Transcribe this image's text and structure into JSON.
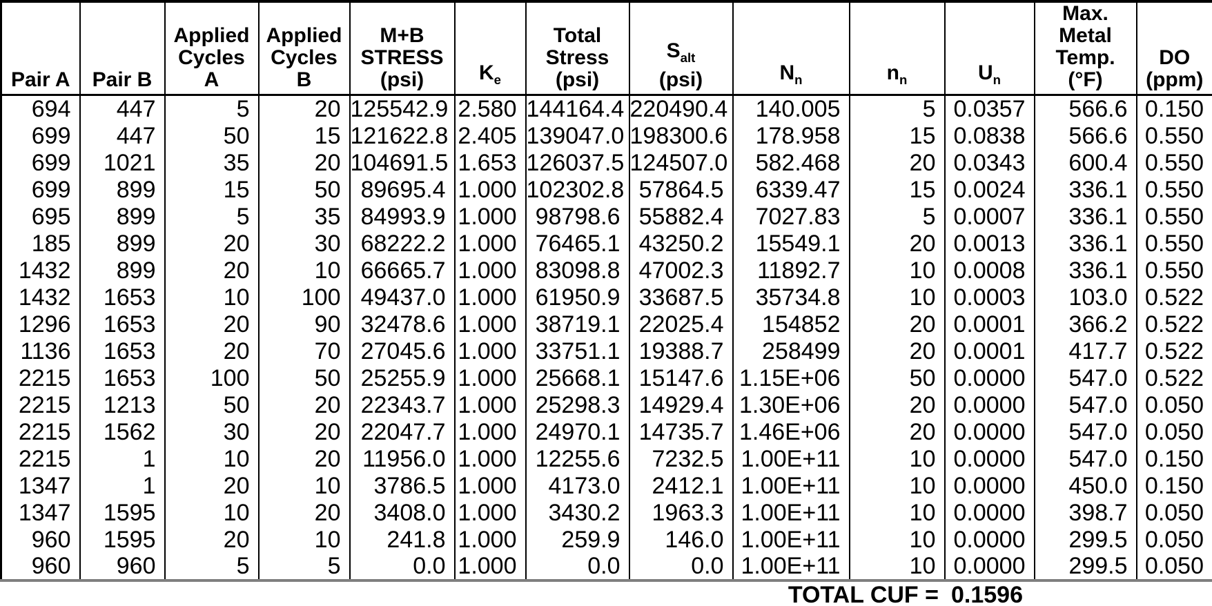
{
  "table": {
    "headers": [
      {
        "id": "pair_a",
        "lines": [
          {
            "t": "Pair A"
          }
        ]
      },
      {
        "id": "pair_b",
        "lines": [
          {
            "t": "Pair B"
          }
        ]
      },
      {
        "id": "applied_cycles_a",
        "lines": [
          {
            "t": "Applied"
          },
          {
            "t": "Cycles"
          },
          {
            "t": "A"
          }
        ]
      },
      {
        "id": "applied_cycles_b",
        "lines": [
          {
            "t": "Applied"
          },
          {
            "t": "Cycles"
          },
          {
            "t": "B"
          }
        ]
      },
      {
        "id": "mb_stress_psi",
        "lines": [
          {
            "t": "M+B"
          },
          {
            "t": "STRESS"
          },
          {
            "t": "(psi)"
          }
        ]
      },
      {
        "id": "ke",
        "lines": [
          {
            "t": "K",
            "sub": "e"
          }
        ]
      },
      {
        "id": "total_stress_psi",
        "lines": [
          {
            "t": "Total"
          },
          {
            "t": "Stress"
          },
          {
            "t": "(psi)"
          }
        ]
      },
      {
        "id": "salt_psi",
        "lines": [
          {
            "t": "S",
            "sub": "alt"
          },
          {
            "t": "(psi)"
          }
        ]
      },
      {
        "id": "big_n_n",
        "lines": [
          {
            "t": "N",
            "sub": "n"
          }
        ]
      },
      {
        "id": "small_n_n",
        "lines": [
          {
            "t": "n",
            "sub": "n"
          }
        ]
      },
      {
        "id": "u_n",
        "lines": [
          {
            "t": "U",
            "sub": "n"
          }
        ]
      },
      {
        "id": "max_metal_temp_f",
        "lines": [
          {
            "t": "Max."
          },
          {
            "t": "Metal"
          },
          {
            "t": "Temp."
          },
          {
            "t": "(°F)"
          }
        ]
      },
      {
        "id": "do_ppm",
        "lines": [
          {
            "t": "DO"
          },
          {
            "t": "(ppm)"
          }
        ]
      }
    ],
    "rows": [
      [
        "694",
        "447",
        "5",
        "20",
        "125542.9",
        "2.580",
        "144164.4",
        "220490.4",
        "140.005",
        "5",
        "0.0357",
        "566.6",
        "0.150"
      ],
      [
        "699",
        "447",
        "50",
        "15",
        "121622.8",
        "2.405",
        "139047.0",
        "198300.6",
        "178.958",
        "15",
        "0.0838",
        "566.6",
        "0.550"
      ],
      [
        "699",
        "1021",
        "35",
        "20",
        "104691.5",
        "1.653",
        "126037.5",
        "124507.0",
        "582.468",
        "20",
        "0.0343",
        "600.4",
        "0.550"
      ],
      [
        "699",
        "899",
        "15",
        "50",
        "89695.4",
        "1.000",
        "102302.8",
        "57864.5",
        "6339.47",
        "15",
        "0.0024",
        "336.1",
        "0.550"
      ],
      [
        "695",
        "899",
        "5",
        "35",
        "84993.9",
        "1.000",
        "98798.6",
        "55882.4",
        "7027.83",
        "5",
        "0.0007",
        "336.1",
        "0.550"
      ],
      [
        "185",
        "899",
        "20",
        "30",
        "68222.2",
        "1.000",
        "76465.1",
        "43250.2",
        "15549.1",
        "20",
        "0.0013",
        "336.1",
        "0.550"
      ],
      [
        "1432",
        "899",
        "20",
        "10",
        "66665.7",
        "1.000",
        "83098.8",
        "47002.3",
        "11892.7",
        "10",
        "0.0008",
        "336.1",
        "0.550"
      ],
      [
        "1432",
        "1653",
        "10",
        "100",
        "49437.0",
        "1.000",
        "61950.9",
        "33687.5",
        "35734.8",
        "10",
        "0.0003",
        "103.0",
        "0.522"
      ],
      [
        "1296",
        "1653",
        "20",
        "90",
        "32478.6",
        "1.000",
        "38719.1",
        "22025.4",
        "154852",
        "20",
        "0.0001",
        "366.2",
        "0.522"
      ],
      [
        "1136",
        "1653",
        "20",
        "70",
        "27045.6",
        "1.000",
        "33751.1",
        "19388.7",
        "258499",
        "20",
        "0.0001",
        "417.7",
        "0.522"
      ],
      [
        "2215",
        "1653",
        "100",
        "50",
        "25255.9",
        "1.000",
        "25668.1",
        "15147.6",
        "1.15E+06",
        "50",
        "0.0000",
        "547.0",
        "0.522"
      ],
      [
        "2215",
        "1213",
        "50",
        "20",
        "22343.7",
        "1.000",
        "25298.3",
        "14929.4",
        "1.30E+06",
        "20",
        "0.0000",
        "547.0",
        "0.050"
      ],
      [
        "2215",
        "1562",
        "30",
        "20",
        "22047.7",
        "1.000",
        "24970.1",
        "14735.7",
        "1.46E+06",
        "20",
        "0.0000",
        "547.0",
        "0.050"
      ],
      [
        "2215",
        "1",
        "10",
        "20",
        "11956.0",
        "1.000",
        "12255.6",
        "7232.5",
        "1.00E+11",
        "10",
        "0.0000",
        "547.0",
        "0.150"
      ],
      [
        "1347",
        "1",
        "20",
        "10",
        "3786.5",
        "1.000",
        "4173.0",
        "2412.1",
        "1.00E+11",
        "10",
        "0.0000",
        "450.0",
        "0.150"
      ],
      [
        "1347",
        "1595",
        "10",
        "20",
        "3408.0",
        "1.000",
        "3430.2",
        "1963.3",
        "1.00E+11",
        "10",
        "0.0000",
        "398.7",
        "0.050"
      ],
      [
        "960",
        "1595",
        "20",
        "10",
        "241.8",
        "1.000",
        "259.9",
        "146.0",
        "1.00E+11",
        "10",
        "0.0000",
        "299.5",
        "0.050"
      ],
      [
        "960",
        "960",
        "5",
        "5",
        "0.0",
        "1.000",
        "0.0",
        "0.0",
        "1.00E+11",
        "10",
        "0.0000",
        "299.5",
        "0.050"
      ]
    ],
    "footer": {
      "label": "TOTAL CUF =",
      "value": "0.1596"
    }
  },
  "colors": {
    "border": "#000000",
    "bottom_border": "#7f7f7f",
    "text": "#000000",
    "background": "#ffffff"
  }
}
